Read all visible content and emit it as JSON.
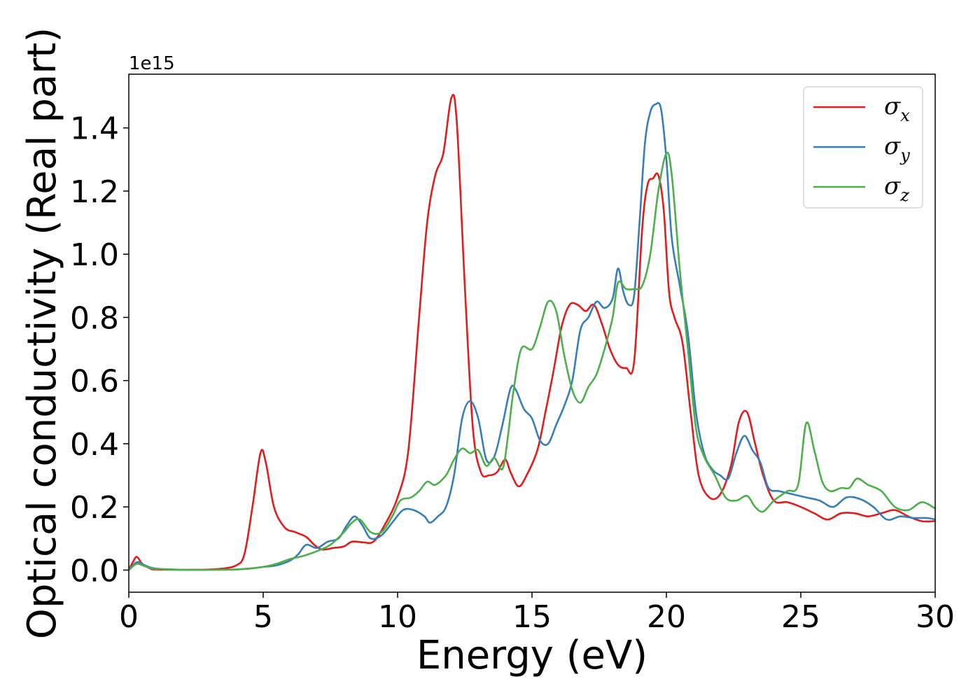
{
  "chart_data": {
    "type": "line",
    "title": "",
    "xlabel": "Energy (eV)",
    "ylabel": "Optical conductivity (Real part)",
    "y_offset_label": "1e15",
    "xlim": [
      0,
      30
    ],
    "ylim": [
      -0.07,
      1.57
    ],
    "x_ticks": [
      0,
      5,
      10,
      15,
      20,
      25,
      30
    ],
    "y_ticks": [
      0.0,
      0.2,
      0.4,
      0.6,
      0.8,
      1.0,
      1.2,
      1.4
    ],
    "x_tick_labels": [
      "0",
      "5",
      "10",
      "15",
      "20",
      "25",
      "30"
    ],
    "y_tick_labels": [
      "0.0",
      "0.2",
      "0.4",
      "0.6",
      "0.8",
      "1.0",
      "1.2",
      "1.4"
    ],
    "grid": false,
    "legend_position": "top-right",
    "series": [
      {
        "name": "σx",
        "symbol": "σ",
        "subscript": "x",
        "color": "#e41a1c",
        "x": [
          0,
          0.15,
          0.3,
          0.5,
          0.8,
          1,
          2,
          3,
          3.5,
          4,
          4.3,
          4.6,
          4.9,
          5.1,
          5.4,
          5.8,
          6.2,
          6.6,
          6.9,
          7.2,
          7.6,
          8,
          8.3,
          8.7,
          9.1,
          9.5,
          10,
          10.4,
          10.8,
          11.1,
          11.4,
          11.7,
          12,
          12.2,
          12.5,
          12.8,
          13.1,
          13.4,
          13.7,
          14,
          14.2,
          14.5,
          14.8,
          15.2,
          15.5,
          15.8,
          16.1,
          16.4,
          16.7,
          17,
          17.3,
          17.6,
          17.9,
          18.2,
          18.5,
          18.8,
          19.1,
          19.3,
          19.5,
          19.7,
          19.9,
          20.1,
          20.3,
          20.6,
          20.9,
          21.2,
          21.6,
          22,
          22.4,
          22.7,
          23,
          23.3,
          23.6,
          24,
          24.5,
          25,
          25.5,
          26,
          26.5,
          27,
          27.5,
          28,
          28.5,
          29,
          29.5,
          30
        ],
        "y": [
          0.0,
          0.025,
          0.042,
          0.02,
          0.005,
          0.002,
          0.001,
          0.002,
          0.005,
          0.015,
          0.05,
          0.2,
          0.372,
          0.34,
          0.2,
          0.135,
          0.12,
          0.105,
          0.08,
          0.065,
          0.07,
          0.075,
          0.09,
          0.088,
          0.09,
          0.14,
          0.23,
          0.38,
          0.8,
          1.1,
          1.25,
          1.32,
          1.495,
          1.42,
          0.9,
          0.45,
          0.31,
          0.3,
          0.31,
          0.35,
          0.31,
          0.265,
          0.3,
          0.38,
          0.5,
          0.63,
          0.77,
          0.84,
          0.84,
          0.82,
          0.84,
          0.78,
          0.7,
          0.65,
          0.64,
          0.66,
          1.08,
          1.22,
          1.24,
          1.25,
          1.14,
          0.88,
          0.8,
          0.72,
          0.5,
          0.3,
          0.23,
          0.24,
          0.33,
          0.47,
          0.5,
          0.4,
          0.3,
          0.22,
          0.215,
          0.2,
          0.18,
          0.16,
          0.18,
          0.18,
          0.17,
          0.18,
          0.19,
          0.17,
          0.155,
          0.155
        ]
      },
      {
        "name": "σy",
        "symbol": "σ",
        "subscript": "y",
        "color": "#377eb8",
        "x": [
          0,
          0.3,
          0.6,
          1,
          2,
          3,
          4,
          4.5,
          5,
          5.5,
          6,
          6.3,
          6.6,
          7,
          7.4,
          7.8,
          8.1,
          8.4,
          8.7,
          9,
          9.4,
          9.8,
          10.2,
          10.6,
          11,
          11.2,
          11.5,
          11.8,
          12.1,
          12.4,
          12.7,
          13,
          13.3,
          13.6,
          13.9,
          14.2,
          14.4,
          14.7,
          15,
          15.3,
          15.6,
          15.9,
          16.2,
          16.5,
          16.8,
          17.1,
          17.4,
          17.7,
          18,
          18.2,
          18.4,
          18.6,
          18.8,
          19,
          19.2,
          19.4,
          19.6,
          19.8,
          20,
          20.2,
          20.5,
          20.8,
          21.1,
          21.4,
          21.7,
          22,
          22.3,
          22.6,
          22.9,
          23.2,
          23.5,
          23.8,
          24.2,
          24.7,
          25.2,
          25.7,
          26.2,
          26.7,
          27.2,
          27.7,
          28.2,
          28.7,
          29.2,
          29.7,
          30
        ],
        "y": [
          0.0,
          0.025,
          0.015,
          0.005,
          0.001,
          0.001,
          0.002,
          0.005,
          0.01,
          0.015,
          0.03,
          0.05,
          0.08,
          0.07,
          0.09,
          0.1,
          0.14,
          0.17,
          0.14,
          0.1,
          0.11,
          0.15,
          0.19,
          0.19,
          0.17,
          0.15,
          0.17,
          0.2,
          0.3,
          0.48,
          0.535,
          0.48,
          0.35,
          0.36,
          0.46,
          0.575,
          0.57,
          0.51,
          0.48,
          0.41,
          0.4,
          0.46,
          0.52,
          0.6,
          0.76,
          0.8,
          0.85,
          0.83,
          0.86,
          0.955,
          0.88,
          0.84,
          0.87,
          1.1,
          1.35,
          1.45,
          1.475,
          1.46,
          1.3,
          1.05,
          0.9,
          0.75,
          0.5,
          0.37,
          0.32,
          0.3,
          0.29,
          0.37,
          0.425,
          0.38,
          0.34,
          0.26,
          0.25,
          0.24,
          0.23,
          0.22,
          0.2,
          0.23,
          0.225,
          0.2,
          0.16,
          0.17,
          0.165,
          0.165,
          0.16
        ]
      },
      {
        "name": "σz",
        "symbol": "σ",
        "subscript": "z",
        "color": "#4daf4a",
        "x": [
          0,
          0.3,
          0.6,
          1,
          2,
          3,
          4,
          4.5,
          5,
          5.5,
          6,
          6.5,
          7,
          7.5,
          8,
          8.3,
          8.6,
          9,
          9.4,
          9.8,
          10.1,
          10.5,
          10.8,
          11.1,
          11.4,
          11.8,
          12.1,
          12.4,
          12.7,
          13,
          13.3,
          13.6,
          13.9,
          14.1,
          14.3,
          14.6,
          15,
          15.3,
          15.6,
          15.9,
          16.2,
          16.5,
          16.8,
          17.1,
          17.4,
          17.7,
          18,
          18.2,
          18.5,
          18.8,
          19.1,
          19.4,
          19.7,
          20,
          20.2,
          20.5,
          20.8,
          21.1,
          21.4,
          21.8,
          22.2,
          22.6,
          23,
          23.3,
          23.6,
          24,
          24.5,
          24.9,
          25.2,
          25.5,
          25.8,
          26.1,
          26.5,
          26.8,
          27.1,
          27.5,
          28,
          28.5,
          29,
          29.5,
          30
        ],
        "y": [
          0.0,
          0.02,
          0.012,
          0.004,
          0.001,
          0.001,
          0.002,
          0.005,
          0.01,
          0.02,
          0.035,
          0.045,
          0.06,
          0.08,
          0.12,
          0.15,
          0.16,
          0.12,
          0.12,
          0.17,
          0.22,
          0.23,
          0.25,
          0.28,
          0.27,
          0.3,
          0.35,
          0.385,
          0.37,
          0.38,
          0.33,
          0.355,
          0.32,
          0.42,
          0.56,
          0.7,
          0.7,
          0.77,
          0.85,
          0.82,
          0.68,
          0.57,
          0.53,
          0.58,
          0.62,
          0.7,
          0.8,
          0.91,
          0.89,
          0.89,
          0.9,
          1.0,
          1.2,
          1.32,
          1.25,
          0.95,
          0.7,
          0.45,
          0.36,
          0.3,
          0.23,
          0.22,
          0.235,
          0.2,
          0.185,
          0.22,
          0.25,
          0.27,
          0.465,
          0.38,
          0.28,
          0.25,
          0.26,
          0.26,
          0.29,
          0.27,
          0.25,
          0.2,
          0.19,
          0.215,
          0.195
        ]
      }
    ]
  }
}
